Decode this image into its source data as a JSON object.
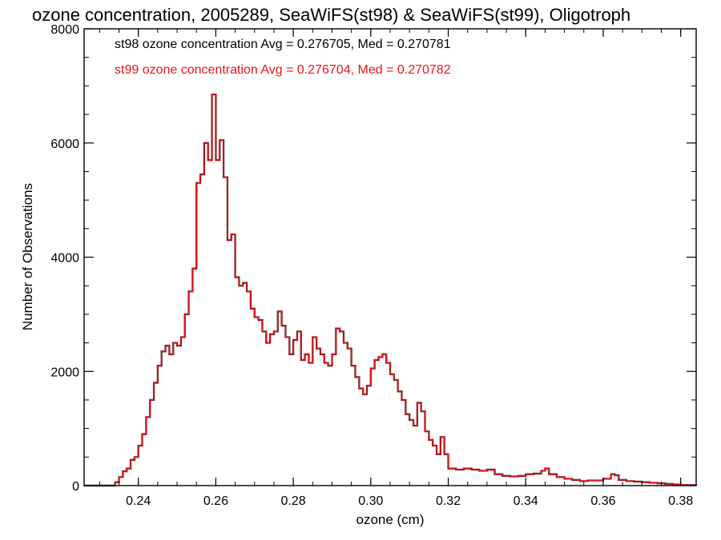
{
  "chart_data": {
    "type": "line",
    "style": "step histogram",
    "title": "ozone concentration, 2005289, SeaWiFS(st98) & SeaWiFS(st99), Oligotroph",
    "xlabel": "ozone (cm)",
    "ylabel": "Number of Observations",
    "xlim": [
      0.226,
      0.384
    ],
    "ylim": [
      0,
      8000
    ],
    "x_ticks": [
      "0.24",
      "0.26",
      "0.28",
      "0.30",
      "0.32",
      "0.34",
      "0.36",
      "0.38"
    ],
    "y_ticks": [
      "0",
      "2000",
      "4000",
      "6000",
      "8000"
    ],
    "grid": false,
    "legend": "top-left",
    "annotations": [
      {
        "text": "st98 ozone concentration Avg = 0.276705, Med = 0.270781",
        "color": "#000000"
      },
      {
        "text": "st99 ozone concentration Avg = 0.276704, Med = 0.270782",
        "color": "#e8141a"
      }
    ],
    "x": [
      0.226,
      0.234,
      0.235,
      0.236,
      0.237,
      0.238,
      0.239,
      0.24,
      0.241,
      0.242,
      0.243,
      0.244,
      0.245,
      0.246,
      0.247,
      0.248,
      0.249,
      0.25,
      0.251,
      0.252,
      0.253,
      0.254,
      0.255,
      0.256,
      0.257,
      0.258,
      0.259,
      0.26,
      0.261,
      0.262,
      0.263,
      0.264,
      0.265,
      0.266,
      0.267,
      0.268,
      0.269,
      0.27,
      0.271,
      0.272,
      0.273,
      0.274,
      0.275,
      0.276,
      0.277,
      0.278,
      0.279,
      0.28,
      0.281,
      0.282,
      0.283,
      0.284,
      0.285,
      0.286,
      0.287,
      0.288,
      0.289,
      0.29,
      0.291,
      0.292,
      0.293,
      0.294,
      0.295,
      0.296,
      0.297,
      0.298,
      0.299,
      0.3,
      0.301,
      0.302,
      0.303,
      0.304,
      0.305,
      0.306,
      0.307,
      0.308,
      0.309,
      0.31,
      0.311,
      0.312,
      0.313,
      0.314,
      0.315,
      0.316,
      0.317,
      0.318,
      0.319,
      0.32,
      0.322,
      0.324,
      0.326,
      0.328,
      0.33,
      0.332,
      0.334,
      0.336,
      0.338,
      0.34,
      0.342,
      0.344,
      0.345,
      0.346,
      0.348,
      0.35,
      0.352,
      0.354,
      0.356,
      0.358,
      0.36,
      0.362,
      0.363,
      0.364,
      0.366,
      0.368,
      0.37,
      0.372,
      0.374,
      0.376,
      0.378,
      0.38,
      0.384
    ],
    "series": [
      {
        "name": "st98",
        "color": "#000000",
        "values": [
          0,
          60,
          150,
          250,
          300,
          450,
          500,
          700,
          900,
          1200,
          1500,
          1800,
          2100,
          2350,
          2450,
          2300,
          2500,
          2450,
          2600,
          3000,
          3400,
          3800,
          5300,
          5450,
          6000,
          5700,
          6850,
          5700,
          6050,
          5400,
          4300,
          4400,
          3650,
          3500,
          3550,
          3400,
          3100,
          2950,
          2900,
          2700,
          2500,
          2650,
          2700,
          3050,
          2800,
          2600,
          2300,
          2550,
          2700,
          2200,
          2300,
          2150,
          2600,
          2400,
          2300,
          2150,
          2100,
          2300,
          2750,
          2700,
          2500,
          2400,
          2100,
          1900,
          1700,
          1600,
          1750,
          2050,
          2200,
          2250,
          2300,
          2150,
          1950,
          1850,
          1650,
          1500,
          1250,
          1150,
          1050,
          1450,
          1300,
          950,
          800,
          700,
          550,
          850,
          550,
          300,
          280,
          300,
          280,
          260,
          280,
          200,
          170,
          160,
          170,
          200,
          210,
          260,
          300,
          200,
          150,
          120,
          100,
          80,
          90,
          90,
          120,
          200,
          180,
          100,
          80,
          70,
          60,
          50,
          40,
          30,
          20,
          10,
          0
        ]
      },
      {
        "name": "st99",
        "color": "#e8141a",
        "values": [
          0,
          60,
          150,
          250,
          300,
          450,
          500,
          700,
          900,
          1200,
          1500,
          1800,
          2100,
          2350,
          2450,
          2300,
          2500,
          2450,
          2600,
          3000,
          3400,
          3800,
          5300,
          5450,
          6000,
          5700,
          6850,
          5700,
          6050,
          5400,
          4300,
          4400,
          3650,
          3500,
          3550,
          3400,
          3100,
          2950,
          2900,
          2700,
          2500,
          2650,
          2700,
          3050,
          2800,
          2600,
          2300,
          2550,
          2700,
          2200,
          2300,
          2150,
          2600,
          2400,
          2300,
          2150,
          2100,
          2300,
          2750,
          2700,
          2500,
          2400,
          2100,
          1900,
          1700,
          1600,
          1750,
          2050,
          2200,
          2250,
          2300,
          2150,
          1950,
          1850,
          1650,
          1500,
          1250,
          1150,
          1050,
          1450,
          1300,
          950,
          800,
          700,
          550,
          850,
          550,
          300,
          280,
          300,
          280,
          260,
          280,
          200,
          170,
          160,
          170,
          200,
          210,
          260,
          300,
          200,
          150,
          120,
          100,
          80,
          90,
          90,
          120,
          200,
          180,
          100,
          80,
          70,
          60,
          50,
          40,
          30,
          20,
          10,
          0
        ]
      }
    ]
  }
}
